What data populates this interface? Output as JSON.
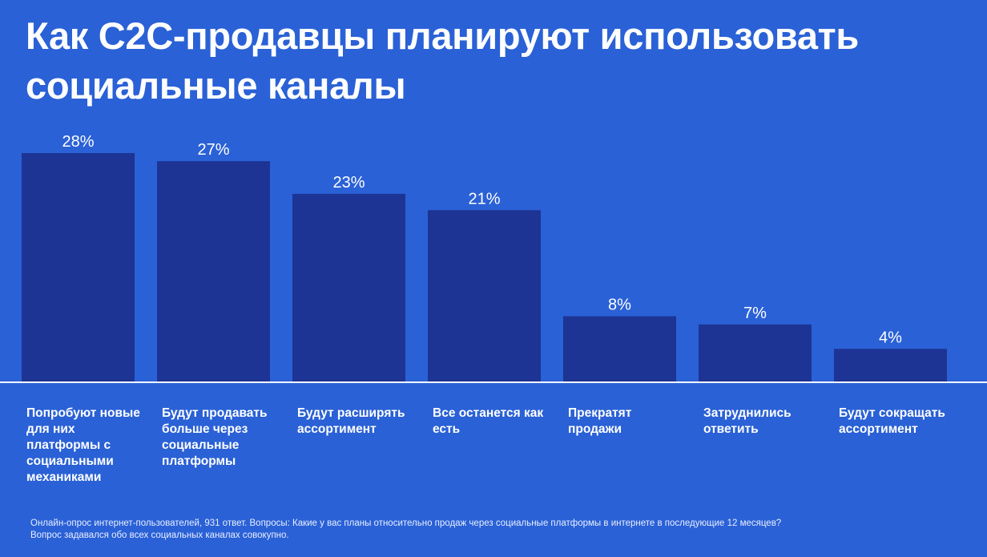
{
  "title": "Как C2C-продавцы планируют использовать социальные каналы",
  "chart_data": {
    "type": "bar",
    "categories": [
      "Попробуют новые для них платформы с социальными механиками",
      "Будут продавать больше через социальные платформы",
      "Будут расширять ассортимент",
      "Все останется как есть",
      "Прекратят продажи",
      "Затруднились ответить",
      "Будут сокращать ассортимент"
    ],
    "values": [
      28,
      27,
      23,
      21,
      8,
      7,
      4
    ],
    "value_labels": [
      "28%",
      "27%",
      "23%",
      "21%",
      "8%",
      "7%",
      "4%"
    ],
    "ylim": [
      0,
      28
    ],
    "grid": false,
    "legend": "none",
    "bar_color": "#1d3494",
    "baseline_color": "#ffffff"
  },
  "footnote": {
    "line1": "Онлайн-опрос интернет-пользователей, 931 ответ. Вопросы: Какие у вас планы относительно продаж через социальные платформы в интернете в последующие 12 месяцев?",
    "line2": "Вопрос задавался обо всех социальных каналах совокупно."
  }
}
